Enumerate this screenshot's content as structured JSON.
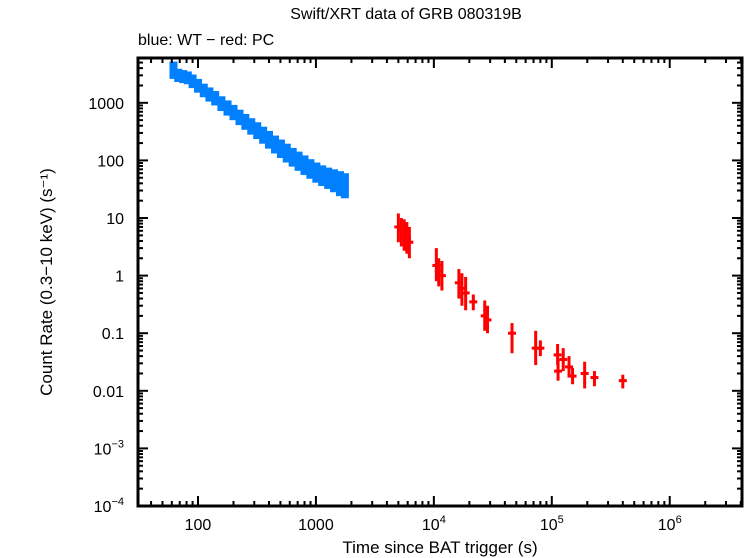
{
  "chart_data": {
    "type": "scatter",
    "title": "Swift/XRT data of GRB 080319B",
    "subtitle": "blue: WT − red: PC",
    "xlabel": "Time since BAT trigger (s)",
    "ylabel": "Count Rate (0.3−10 keV) (s⁻¹)",
    "xscale": "log",
    "yscale": "log",
    "xlim": [
      31,
      4100000
    ],
    "ylim": [
      0.0001,
      6000
    ],
    "grid": false,
    "legend": "subtitle text (top-left)",
    "x_ticks": [
      {
        "value": 100,
        "label": "100"
      },
      {
        "value": 1000,
        "label": "1000"
      },
      {
        "value": 10000,
        "label": "10",
        "exp": "4"
      },
      {
        "value": 100000,
        "label": "10",
        "exp": "5"
      },
      {
        "value": 1000000,
        "label": "10",
        "exp": "6"
      }
    ],
    "y_ticks": [
      {
        "value": 1000,
        "label": "1000"
      },
      {
        "value": 100,
        "label": "100"
      },
      {
        "value": 10,
        "label": "10"
      },
      {
        "value": 1,
        "label": "1"
      },
      {
        "value": 0.1,
        "label": "0.1"
      },
      {
        "value": 0.01,
        "label": "0.01"
      },
      {
        "value": 0.001,
        "label": "10",
        "exp": "−3"
      },
      {
        "value": 0.0001,
        "label": "10",
        "exp": "−4"
      }
    ],
    "series": [
      {
        "name": "WT",
        "color": "#0080ff",
        "points": [
          {
            "t": 62,
            "rate": 3800,
            "lo": 2600,
            "hi": 5200
          },
          {
            "t": 68,
            "rate": 3000,
            "lo": 2300,
            "hi": 3900
          },
          {
            "t": 75,
            "rate": 2900,
            "lo": 2200,
            "hi": 3700
          },
          {
            "t": 82,
            "rate": 2700,
            "lo": 2100,
            "hi": 3500
          },
          {
            "t": 90,
            "rate": 2400,
            "lo": 1800,
            "hi": 3100
          },
          {
            "t": 100,
            "rate": 2000,
            "lo": 1500,
            "hi": 2600
          },
          {
            "t": 112,
            "rate": 1650,
            "lo": 1250,
            "hi": 2150
          },
          {
            "t": 125,
            "rate": 1400,
            "lo": 1050,
            "hi": 1850
          },
          {
            "t": 140,
            "rate": 1200,
            "lo": 900,
            "hi": 1600
          },
          {
            "t": 158,
            "rate": 980,
            "lo": 720,
            "hi": 1300
          },
          {
            "t": 178,
            "rate": 820,
            "lo": 600,
            "hi": 1100
          },
          {
            "t": 200,
            "rate": 680,
            "lo": 500,
            "hi": 920
          },
          {
            "t": 225,
            "rate": 560,
            "lo": 410,
            "hi": 760
          },
          {
            "t": 252,
            "rate": 470,
            "lo": 340,
            "hi": 640
          },
          {
            "t": 283,
            "rate": 390,
            "lo": 280,
            "hi": 540
          },
          {
            "t": 318,
            "rate": 330,
            "lo": 235,
            "hi": 460
          },
          {
            "t": 357,
            "rate": 275,
            "lo": 195,
            "hi": 385
          },
          {
            "t": 400,
            "rate": 230,
            "lo": 160,
            "hi": 325
          },
          {
            "t": 450,
            "rate": 190,
            "lo": 132,
            "hi": 270
          },
          {
            "t": 505,
            "rate": 160,
            "lo": 110,
            "hi": 230
          },
          {
            "t": 566,
            "rate": 135,
            "lo": 92,
            "hi": 195
          },
          {
            "t": 635,
            "rate": 115,
            "lo": 78,
            "hi": 165
          },
          {
            "t": 713,
            "rate": 98,
            "lo": 66,
            "hi": 142
          },
          {
            "t": 800,
            "rate": 84,
            "lo": 56,
            "hi": 122
          },
          {
            "t": 898,
            "rate": 72,
            "lo": 48,
            "hi": 105
          },
          {
            "t": 1008,
            "rate": 63,
            "lo": 41,
            "hi": 92
          },
          {
            "t": 1130,
            "rate": 56,
            "lo": 36,
            "hi": 82
          },
          {
            "t": 1270,
            "rate": 50,
            "lo": 32,
            "hi": 75
          },
          {
            "t": 1425,
            "rate": 45,
            "lo": 28,
            "hi": 70
          },
          {
            "t": 1600,
            "rate": 40,
            "lo": 24,
            "hi": 65
          },
          {
            "t": 1760,
            "rate": 37,
            "lo": 22,
            "hi": 60
          }
        ]
      },
      {
        "name": "PC",
        "color": "#ff0000",
        "points": [
          {
            "t": 5000,
            "rate": 7.0,
            "lo": 3.8,
            "hi": 12
          },
          {
            "t": 5300,
            "rate": 6.0,
            "lo": 3.2,
            "hi": 10
          },
          {
            "t": 5600,
            "rate": 5.2,
            "lo": 2.7,
            "hi": 9.5
          },
          {
            "t": 5900,
            "rate": 4.5,
            "lo": 2.4,
            "hi": 8.5
          },
          {
            "t": 6200,
            "rate": 3.8,
            "lo": 2.0,
            "hi": 7.0
          },
          {
            "t": 10500,
            "rate": 1.5,
            "lo": 0.8,
            "hi": 3.0
          },
          {
            "t": 11000,
            "rate": 1.2,
            "lo": 0.65,
            "hi": 2.0
          },
          {
            "t": 11700,
            "rate": 1.0,
            "lo": 0.55,
            "hi": 1.8
          },
          {
            "t": 16300,
            "rate": 0.75,
            "lo": 0.4,
            "hi": 1.3
          },
          {
            "t": 17300,
            "rate": 0.6,
            "lo": 0.3,
            "hi": 1.1
          },
          {
            "t": 18600,
            "rate": 0.5,
            "lo": 0.25,
            "hi": 0.95
          },
          {
            "t": 21600,
            "rate": 0.35,
            "lo": 0.25,
            "hi": 0.47
          },
          {
            "t": 27000,
            "rate": 0.2,
            "lo": 0.11,
            "hi": 0.37
          },
          {
            "t": 28500,
            "rate": 0.17,
            "lo": 0.1,
            "hi": 0.3
          },
          {
            "t": 46000,
            "rate": 0.1,
            "lo": 0.045,
            "hi": 0.15
          },
          {
            "t": 73000,
            "rate": 0.055,
            "lo": 0.028,
            "hi": 0.11
          },
          {
            "t": 80000,
            "rate": 0.055,
            "lo": 0.04,
            "hi": 0.075
          },
          {
            "t": 112000,
            "rate": 0.042,
            "lo": 0.028,
            "hi": 0.065
          },
          {
            "t": 113000,
            "rate": 0.022,
            "lo": 0.015,
            "hi": 0.035
          },
          {
            "t": 125000,
            "rate": 0.035,
            "lo": 0.022,
            "hi": 0.055
          },
          {
            "t": 140000,
            "rate": 0.026,
            "lo": 0.017,
            "hi": 0.04
          },
          {
            "t": 150000,
            "rate": 0.018,
            "lo": 0.013,
            "hi": 0.025
          },
          {
            "t": 190000,
            "rate": 0.02,
            "lo": 0.011,
            "hi": 0.032
          },
          {
            "t": 230000,
            "rate": 0.017,
            "lo": 0.012,
            "hi": 0.022
          },
          {
            "t": 400000,
            "rate": 0.015,
            "lo": 0.011,
            "hi": 0.019
          }
        ]
      }
    ]
  }
}
